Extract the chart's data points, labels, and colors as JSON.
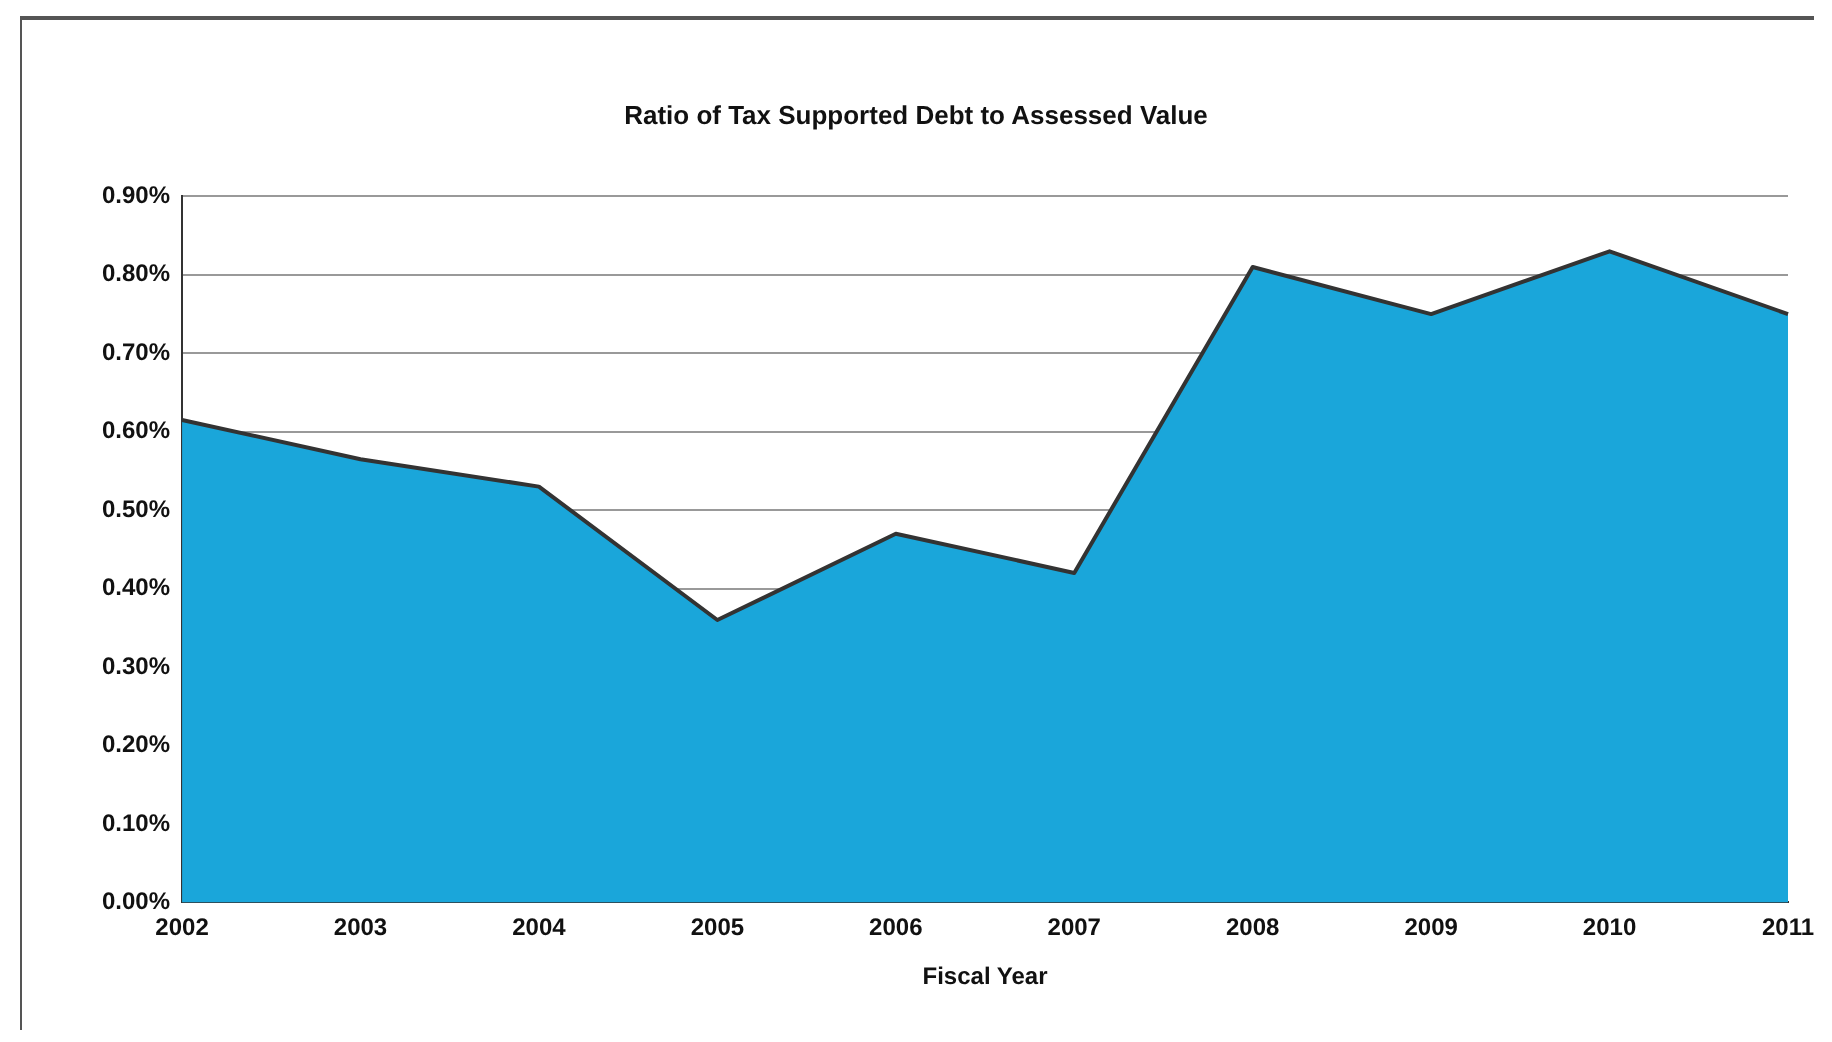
{
  "chart_data": {
    "type": "area",
    "title": "Ratio of Tax Supported Debt to Assessed Value",
    "xlabel": "Fiscal Year",
    "categories": [
      "2002",
      "2003",
      "2004",
      "2005",
      "2006",
      "2007",
      "2008",
      "2009",
      "2010",
      "2011"
    ],
    "series": [
      {
        "color": "#1aa6da",
        "values": [
          0.615,
          0.565,
          0.53,
          0.36,
          0.47,
          0.42,
          0.81,
          0.75,
          0.83,
          0.75
        ]
      }
    ],
    "ylim": [
      0,
      0.9
    ],
    "yticks": [
      {
        "value": 0,
        "label": "0.00%"
      },
      {
        "value": 0.1,
        "label": "0.10%"
      },
      {
        "value": 0.2,
        "label": "0.20%"
      },
      {
        "value": 0.3,
        "label": "0.30%"
      },
      {
        "value": 0.4,
        "label": "0.40%"
      },
      {
        "value": 0.5,
        "label": "0.50%"
      },
      {
        "value": 0.6,
        "label": "0.60%"
      },
      {
        "value": 0.7,
        "label": "0.70%"
      },
      {
        "value": 0.8,
        "label": "0.80%"
      },
      {
        "value": 0.9,
        "label": "0.90%"
      }
    ],
    "grid": "y",
    "legend": false
  }
}
